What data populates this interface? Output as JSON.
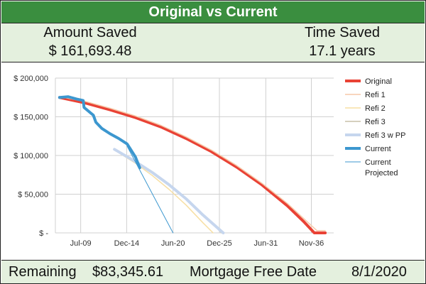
{
  "title": "Original vs Current",
  "summary": {
    "amount_saved_label": "Amount Saved",
    "amount_saved_value": "$ 161,693.48",
    "time_saved_label": "Time Saved",
    "time_saved_value": "17.1 years"
  },
  "footer": {
    "remaining_label": "Remaining",
    "remaining_value": "$83,345.61",
    "free_date_label": "Mortgage Free Date",
    "free_date_value": "8/1/2020"
  },
  "colors": {
    "title_bg": "#3a8e3f",
    "panel_bg": "#e4f0de"
  },
  "chart_data": {
    "type": "line",
    "x_tick_labels": [
      "Jul-09",
      "Dec-14",
      "Jun-20",
      "Dec-25",
      "Jun-31",
      "Nov-36"
    ],
    "x_tick_years": [
      2009.5,
      2014.95,
      2020.45,
      2025.95,
      2031.45,
      2036.85
    ],
    "xlim": [
      2006.5,
      2039.5
    ],
    "ylim": [
      0,
      200000
    ],
    "y_ticks": [
      0,
      50000,
      100000,
      150000,
      200000
    ],
    "y_tick_labels": [
      "$ -",
      "$ 50,000",
      "$ 100,000",
      "$ 150,000",
      "$ 200,000"
    ],
    "grid": true,
    "legend_position": "right",
    "series": [
      {
        "name": "Original",
        "color": "#e94235",
        "width": 4,
        "x": [
          2007,
          2010,
          2013,
          2016,
          2019,
          2022,
          2025,
          2028,
          2031,
          2034,
          2036,
          2037.2,
          2038.5
        ],
        "y": [
          175000,
          168000,
          159000,
          149000,
          137000,
          122000,
          105000,
          85000,
          62000,
          35000,
          14000,
          0,
          0
        ]
      },
      {
        "name": "Refi 1",
        "color": "#f6c9a8",
        "width": 1.5,
        "x": [
          2007,
          2010,
          2013,
          2016,
          2019,
          2022,
          2025,
          2028,
          2031,
          2034,
          2036,
          2037.5,
          2038.5
        ],
        "y": [
          176000,
          170000,
          161000,
          151000,
          139000,
          124000,
          107000,
          87000,
          64000,
          38000,
          18000,
          3000,
          3000
        ]
      },
      {
        "name": "Refi 2",
        "color": "#f7dfa3",
        "width": 1.5,
        "x": [
          2013.5,
          2016,
          2018,
          2020,
          2022,
          2024,
          2025.2
        ],
        "y": [
          107000,
          90000,
          74000,
          56000,
          36000,
          13000,
          0
        ]
      },
      {
        "name": "Refi 3",
        "color": "#c7c1a8",
        "width": 1.5,
        "x": [
          2013.5,
          2016,
          2018,
          2020,
          2022,
          2024,
          2026.2
        ],
        "y": [
          108000,
          93000,
          79000,
          63000,
          45000,
          24000,
          0
        ]
      },
      {
        "name": "Refi 3 w PP",
        "color": "#c6d6ee",
        "width": 4,
        "x": [
          2013.5,
          2016,
          2018,
          2020,
          2022,
          2024,
          2026.4
        ],
        "y": [
          108000,
          92000,
          78000,
          62000,
          44000,
          23000,
          0
        ]
      },
      {
        "name": "Current",
        "color": "#3c97cf",
        "width": 4,
        "x": [
          2007,
          2008,
          2009,
          2009.8,
          2009.9,
          2011,
          2011.3,
          2012,
          2013,
          2014,
          2015,
          2015.3,
          2016,
          2016.5
        ],
        "y": [
          175000,
          176000,
          173000,
          171000,
          162000,
          152000,
          143000,
          135000,
          128000,
          122000,
          115000,
          110000,
          98000,
          84000
        ]
      },
      {
        "name": "Current Projected",
        "color": "#3c97cf",
        "width": 1,
        "x": [
          2015,
          2020.45
        ],
        "y": [
          112000,
          0
        ]
      }
    ]
  }
}
